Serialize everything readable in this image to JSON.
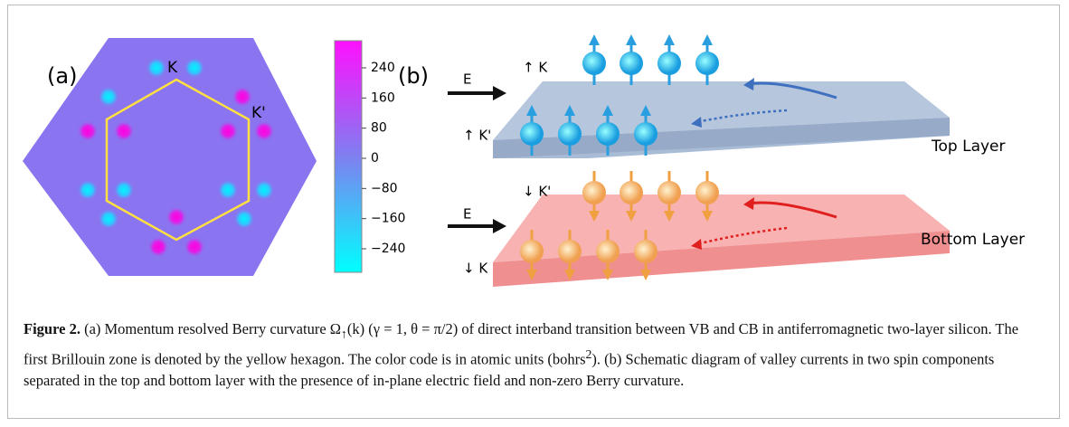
{
  "figure": {
    "panel_a": {
      "label": "(a)",
      "K": "K",
      "K_prime": "K'",
      "colorbar_ticks": [
        {
          "value": 240,
          "label": "240"
        },
        {
          "value": 160,
          "label": "160"
        },
        {
          "value": 80,
          "label": "80"
        },
        {
          "value": 0,
          "label": "0"
        },
        {
          "value": -80,
          "label": "−80"
        },
        {
          "value": -160,
          "label": "−160"
        },
        {
          "value": -240,
          "label": "−240"
        }
      ]
    },
    "panel_b": {
      "label": "(b)",
      "field_top": "E",
      "top_K": "↑ K",
      "top_K_prime": "↑ K'",
      "top_layer": "Top Layer",
      "field_bottom": "E",
      "bottom_K_prime": "↓ K'",
      "bottom_K": "↓ K",
      "bottom_layer": "Bottom Layer"
    },
    "caption": {
      "label": "Figure 2.",
      "part1": " (a) Momentum resolved Berry curvature Ω",
      "sub": "↑",
      "part2": "(k) (γ = 1, θ = π/2) of direct interband transition between VB and CB in antiferromagnetic two-layer silicon. The first Brillouin zone is denoted by the yellow hexagon. The color code is in atomic units (bohrs",
      "sup": "2",
      "part3": "). (b) Schematic diagram of valley currents in two spin components separated in the top and bottom layer with the presence of in-plane electric field and non-zero Berry curvature."
    }
  }
}
